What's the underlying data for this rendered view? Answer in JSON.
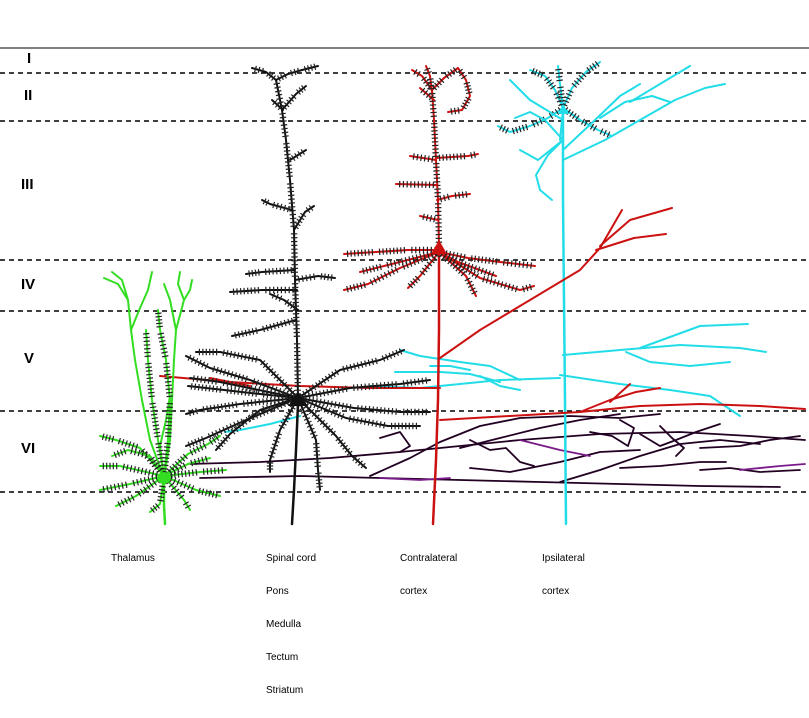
{
  "layers": [
    "I",
    "II",
    "III",
    "IV",
    "V",
    "VI"
  ],
  "targets": [
    {
      "name": "thalamus",
      "lines": [
        "Thalamus"
      ]
    },
    {
      "name": "spinal-cord",
      "lines": [
        "Spinal cord",
        "Pons",
        "Medulla",
        "Tectum",
        "Striatum"
      ]
    },
    {
      "name": "contralateral-cortex",
      "lines": [
        "Contralateral",
        "cortex"
      ]
    },
    {
      "name": "ipsilateral-cortex",
      "lines": [
        "Ipsilateral",
        "cortex"
      ]
    }
  ],
  "colors": {
    "thalamus_neuron": "#33dd22",
    "layer5_neuron": "#111111",
    "layer3_neuron": "#cc1111",
    "layer2_neuron": "#22dde8",
    "thalamic_axons": "#220022",
    "accent_purple": "#7a1a8a"
  }
}
